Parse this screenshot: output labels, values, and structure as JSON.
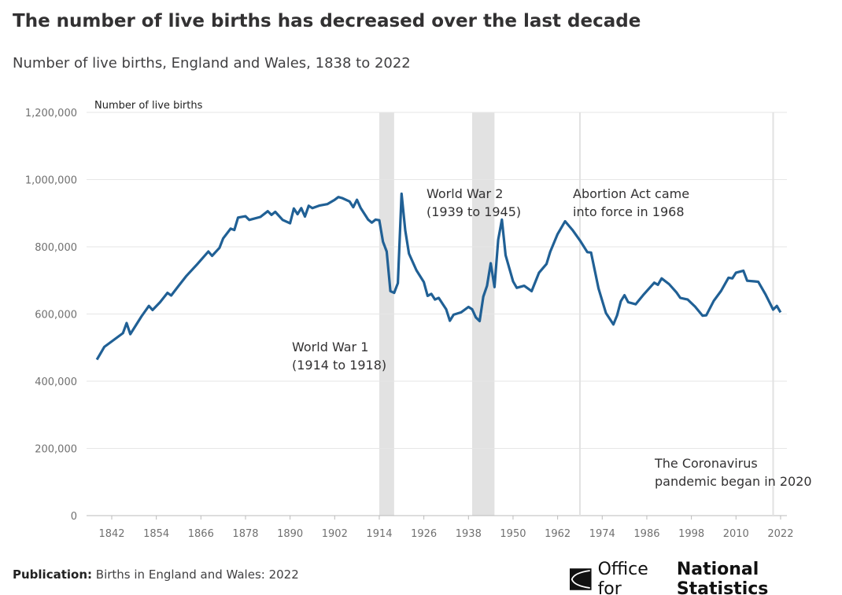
{
  "title": "The number of live births has decreased over the last decade",
  "subtitle": "Number of live births, England and Wales, 1838 to 2022",
  "footer": {
    "label": "Publication:",
    "value": "Births in England and Wales: 2022"
  },
  "logo": {
    "text_light": "Office for",
    "text_bold": "National Statistics"
  },
  "chart_data": {
    "type": "line",
    "title": "The number of live births has decreased over the last decade",
    "ylabel": "Number of live births",
    "xlabel": "",
    "ylim": [
      0,
      1200000
    ],
    "xlim": [
      1838,
      2022
    ],
    "grid": true,
    "yticks": [
      0,
      200000,
      400000,
      600000,
      800000,
      1000000,
      1200000
    ],
    "ytick_labels": [
      "0",
      "200,000",
      "400,000",
      "600,000",
      "800,000",
      "1,000,000",
      "1,200,000"
    ],
    "xticks": [
      1842,
      1854,
      1866,
      1878,
      1890,
      1902,
      1914,
      1926,
      1938,
      1950,
      1962,
      1974,
      1986,
      1998,
      2010,
      2022
    ],
    "line_color": "#206095",
    "bands": [
      {
        "from": 1914,
        "to": 1918,
        "label": "World War 1",
        "label2": "(1914 to 1918)"
      },
      {
        "from": 1939,
        "to": 1945,
        "label": "World War 2",
        "label2": "(1939 to 1945)"
      }
    ],
    "markers": [
      {
        "x": 1968,
        "label": "Abortion Act came",
        "label2": "into force in 1968"
      },
      {
        "x": 2020,
        "label": "The Coronavirus",
        "label2": "pandemic began in 2020"
      }
    ],
    "series": [
      {
        "name": "Live births",
        "x": [
          1838,
          1840,
          1845,
          1846,
          1847,
          1850,
          1852,
          1853,
          1855,
          1857,
          1858,
          1860,
          1862,
          1865,
          1868,
          1869,
          1871,
          1872,
          1874,
          1875,
          1876,
          1878,
          1879,
          1882,
          1884,
          1885,
          1886,
          1888,
          1890,
          1891,
          1892,
          1893,
          1894,
          1895,
          1896,
          1898,
          1900,
          1902,
          1903,
          1904,
          1906,
          1907,
          1908,
          1909,
          1911,
          1912,
          1913,
          1914,
          1915,
          1916,
          1917,
          1918,
          1919,
          1920,
          1921,
          1922,
          1924,
          1926,
          1927,
          1928,
          1929,
          1930,
          1932,
          1933,
          1934,
          1936,
          1938,
          1939,
          1940,
          1941,
          1942,
          1943,
          1944,
          1945,
          1946,
          1947,
          1948,
          1950,
          1951,
          1953,
          1955,
          1957,
          1959,
          1960,
          1962,
          1964,
          1966,
          1968,
          1970,
          1971,
          1973,
          1975,
          1977,
          1978,
          1979,
          1980,
          1981,
          1983,
          1985,
          1987,
          1988,
          1989,
          1990,
          1992,
          1994,
          1995,
          1997,
          1999,
          2001,
          2002,
          2004,
          2006,
          2008,
          2009,
          2010,
          2012,
          2013,
          2015,
          2016,
          2018,
          2020,
          2021,
          2022
        ],
        "values": [
          464000,
          502000,
          543000,
          573000,
          540000,
          593000,
          624000,
          612000,
          635000,
          663000,
          655000,
          684000,
          712000,
          748000,
          786000,
          773000,
          797000,
          825000,
          854000,
          850000,
          887000,
          891000,
          880000,
          889000,
          906000,
          895000,
          904000,
          880000,
          870000,
          914000,
          897000,
          915000,
          890000,
          922000,
          915000,
          923000,
          927000,
          940000,
          948000,
          945000,
          935000,
          918000,
          940000,
          915000,
          881000,
          872000,
          881000,
          879000,
          815000,
          786000,
          668000,
          663000,
          692000,
          958000,
          849000,
          780000,
          730000,
          695000,
          654000,
          660000,
          643000,
          648000,
          614000,
          580000,
          598000,
          605000,
          621000,
          614000,
          590000,
          579000,
          652000,
          684000,
          751000,
          680000,
          821000,
          881000,
          775000,
          697000,
          678000,
          684000,
          668000,
          723000,
          749000,
          785000,
          838000,
          876000,
          850000,
          819000,
          784000,
          783000,
          676000,
          603000,
          569000,
          596000,
          638000,
          656000,
          635000,
          629000,
          656000,
          681000,
          693000,
          687000,
          706000,
          689000,
          664000,
          648000,
          643000,
          622000,
          595000,
          596000,
          639000,
          669000,
          708000,
          706000,
          723000,
          729000,
          699000,
          697000,
          696000,
          657000,
          613000,
          624000,
          605000
        ]
      }
    ]
  }
}
